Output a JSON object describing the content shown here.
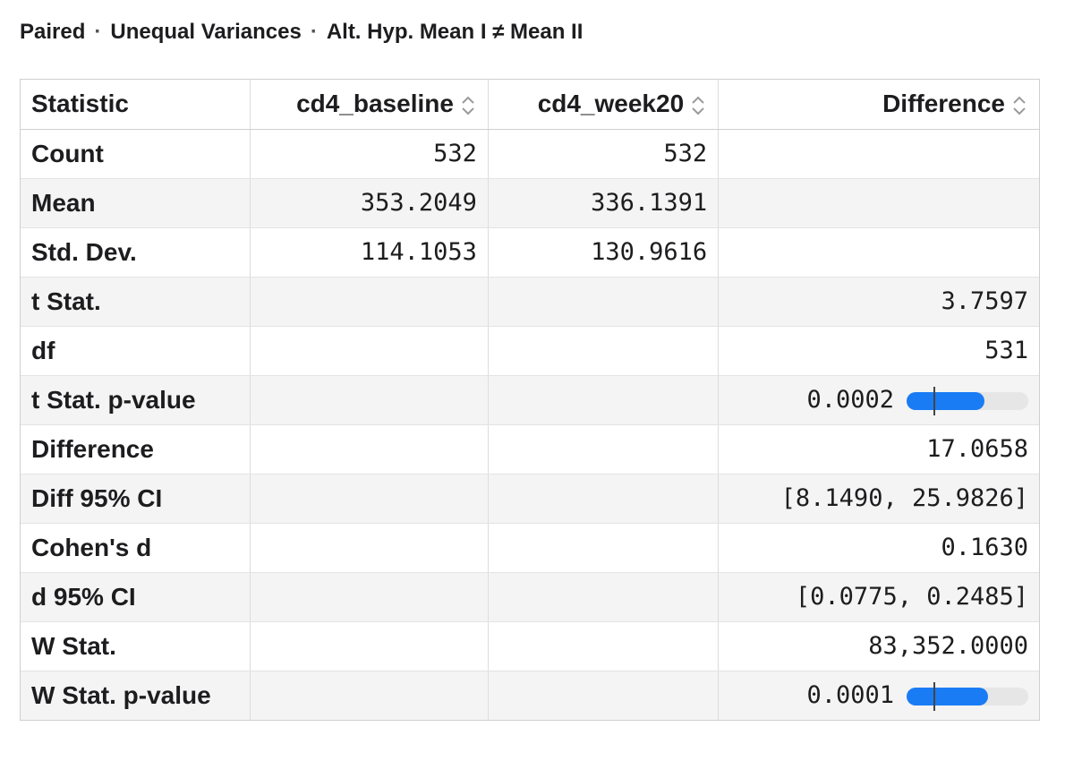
{
  "header": {
    "test_type": "Paired",
    "separator": "·",
    "variance": "Unequal Variances",
    "alt_hypothesis": "Alt. Hyp. Mean I ≠ Mean II"
  },
  "table": {
    "columns": [
      "Statistic",
      "cd4_baseline",
      "cd4_week20",
      "Difference"
    ],
    "rows": [
      {
        "label": "Count",
        "c1": "532",
        "c2": "532",
        "c3": ""
      },
      {
        "label": "Mean",
        "c1": "353.2049",
        "c2": "336.1391",
        "c3": ""
      },
      {
        "label": "Std. Dev.",
        "c1": "114.1053",
        "c2": "130.9616",
        "c3": ""
      },
      {
        "label": "t Stat.",
        "c1": "",
        "c2": "",
        "c3": "3.7597"
      },
      {
        "label": "df",
        "c1": "",
        "c2": "",
        "c3": "531"
      },
      {
        "label": "t Stat. p-value",
        "c1": "",
        "c2": "",
        "c3": "0.0002",
        "p_bar": 0.64
      },
      {
        "label": "Difference",
        "c1": "",
        "c2": "",
        "c3": "17.0658"
      },
      {
        "label": "Diff 95% CI",
        "c1": "",
        "c2": "",
        "c3": "[8.1490, 25.9826]"
      },
      {
        "label": "Cohen's d",
        "c1": "",
        "c2": "",
        "c3": "0.1630"
      },
      {
        "label": "d 95% CI",
        "c1": "",
        "c2": "",
        "c3": "[0.0775, 0.2485]"
      },
      {
        "label": "W Stat.",
        "c1": "",
        "c2": "",
        "c3": "83,352.0000"
      },
      {
        "label": "W Stat. p-value",
        "c1": "",
        "c2": "",
        "c3": "0.0001",
        "p_bar": 0.67
      }
    ]
  },
  "colors": {
    "bar_fill": "#1a7cf5",
    "bar_track": "#e6e6e6",
    "alt_row": "#f4f4f4"
  }
}
